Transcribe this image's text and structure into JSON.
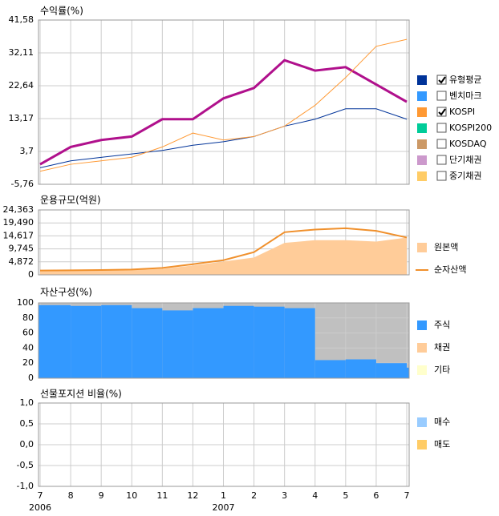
{
  "chart_data": [
    {
      "type": "line",
      "title": "수익률(%)",
      "ylim": [
        -5.76,
        41.58
      ],
      "yticks": [
        {
          "value": -5.76,
          "label": "-5,76"
        },
        {
          "value": 3.7,
          "label": "3,7"
        },
        {
          "value": 13.17,
          "label": "13,17"
        },
        {
          "value": 22.64,
          "label": "22,64"
        },
        {
          "value": 32.11,
          "label": "32,11"
        },
        {
          "value": 41.58,
          "label": "41,58"
        }
      ],
      "series": [
        {
          "color": "#b0108c",
          "width": 3,
          "values": [
            0,
            5,
            7,
            8,
            13,
            13,
            19,
            22,
            30,
            27,
            28,
            23,
            18
          ]
        },
        {
          "name": "유형평균",
          "color": "#003399",
          "checked": true,
          "width": 1,
          "values": [
            -1,
            1,
            2,
            3,
            4,
            5.5,
            6.5,
            8,
            11,
            13,
            16,
            16,
            13
          ]
        },
        {
          "name": "벤치마크",
          "color": "#3399ff",
          "checked": false
        },
        {
          "name": "KOSPI",
          "color": "#ff9933",
          "checked": true,
          "width": 1,
          "values": [
            -2,
            0,
            1,
            2,
            5,
            9,
            7,
            8,
            11,
            17,
            25,
            34,
            36
          ]
        },
        {
          "name": "KOSPI200",
          "color": "#00cc99",
          "checked": false
        },
        {
          "name": "KOSDAQ",
          "color": "#cc9966",
          "checked": false
        },
        {
          "name": "단기채권",
          "color": "#cc99cc",
          "checked": false
        },
        {
          "name": "중기채권",
          "color": "#ffcc66",
          "checked": false
        }
      ]
    },
    {
      "type": "area",
      "title": "운용규모(억원)",
      "ylim": [
        0,
        24363
      ],
      "yticks": [
        0,
        {
          "value": 4872,
          "label": "4,872"
        },
        {
          "value": 9745,
          "label": "9,745"
        },
        {
          "value": 14617,
          "label": "14,617"
        },
        {
          "value": 19490,
          "label": "19,490"
        },
        {
          "value": 24363,
          "label": "24,363"
        }
      ],
      "series": [
        {
          "name": "원본액",
          "color": "#ffcc99",
          "kind": "area",
          "values": [
            1500,
            1600,
            1700,
            1800,
            2200,
            3500,
            5000,
            6500,
            12000,
            13000,
            13000,
            12500,
            14000
          ]
        },
        {
          "name": "순자산액",
          "color": "#f0902c",
          "kind": "line",
          "values": [
            1600,
            1700,
            1800,
            2000,
            2600,
            4000,
            5500,
            8500,
            16000,
            17000,
            17500,
            16500,
            14000
          ]
        }
      ]
    },
    {
      "type": "stacked_area",
      "title": "자산구성(%)",
      "ylim": [
        0,
        100
      ],
      "yticks": [
        0,
        20,
        40,
        60,
        80,
        100
      ],
      "rest_color": "#c0c0c0",
      "series": [
        {
          "name": "주식",
          "color": "#3399ff",
          "values": [
            97,
            96,
            97,
            93,
            90,
            93,
            96,
            95,
            93,
            24,
            25,
            20,
            14
          ]
        },
        {
          "name": "채권",
          "color": "#ffcc99",
          "values": [
            0,
            0,
            0,
            0,
            0,
            0,
            0,
            0,
            0,
            0,
            0,
            0,
            0
          ]
        },
        {
          "name": "기타",
          "color": "#ffffcc",
          "values": [
            0,
            0,
            0,
            0,
            0,
            0,
            0,
            0,
            0,
            0,
            0,
            0,
            0
          ]
        }
      ]
    },
    {
      "type": "line",
      "title": "선물포지션 비율(%)",
      "ylim": [
        -1,
        1
      ],
      "yticks": [
        {
          "value": -1,
          "label": "-1,0"
        },
        {
          "value": -0.5,
          "label": "-0,5"
        },
        {
          "value": 0,
          "label": "0,0"
        },
        {
          "value": 0.5,
          "label": "0,5"
        },
        {
          "value": 1,
          "label": "1,0"
        }
      ],
      "series": [
        {
          "name": "매수",
          "color": "#99ccff",
          "legend_box": true
        },
        {
          "name": "매도",
          "color": "#ffcc66",
          "legend_box": true
        }
      ],
      "categories": [
        "7",
        "8",
        "9",
        "10",
        "11",
        "12",
        "1",
        "2",
        "3",
        "4",
        "5",
        "6",
        "7"
      ],
      "years": [
        "2006",
        "2007"
      ]
    }
  ]
}
